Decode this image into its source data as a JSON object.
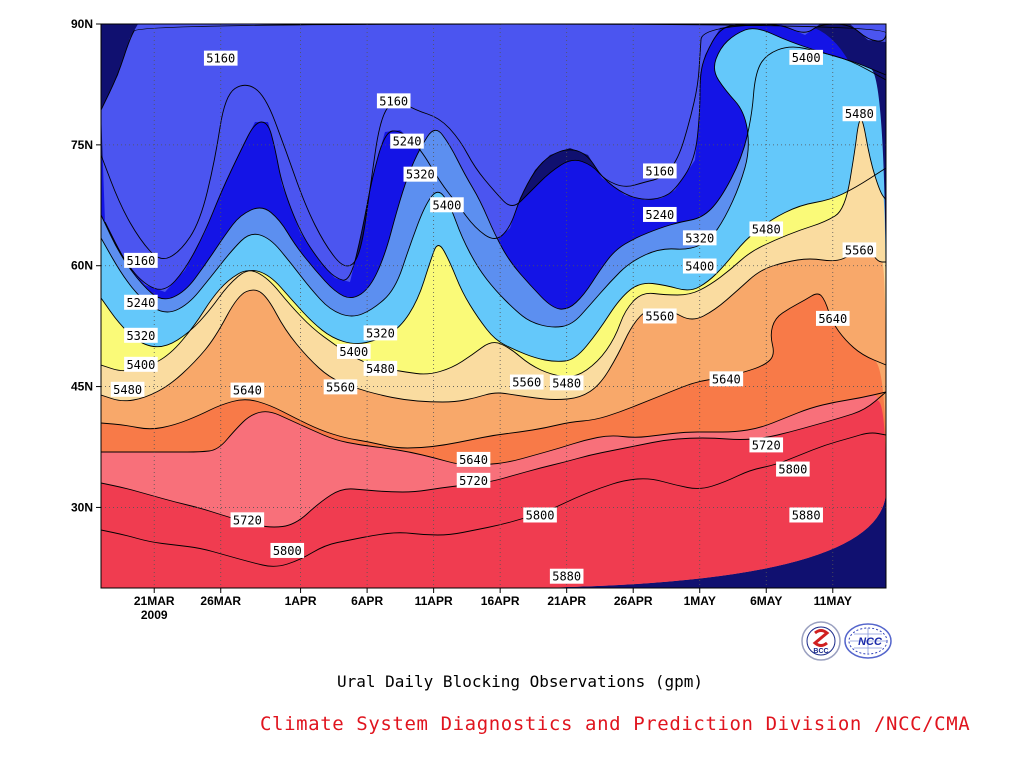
{
  "title": "Ural Daily Blocking Observations (gpm)",
  "credit": "Climate System Diagnostics and Prediction Division /NCC/CMA",
  "logos": [
    {
      "name": "bcc-logo",
      "text": "BCC"
    },
    {
      "name": "ncc-logo",
      "text": "NCC"
    }
  ],
  "chart_data": {
    "type": "contour",
    "variable": "500 hPa geopotential height (gpm)",
    "x_axis": {
      "type": "date",
      "range": [
        "2009-03-17",
        "2009-05-15"
      ],
      "ticks": [
        {
          "date": "2009-03-21",
          "label": "21MAR",
          "sublabel": "2009"
        },
        {
          "date": "2009-03-26",
          "label": "26MAR"
        },
        {
          "date": "2009-04-01",
          "label": "1APR"
        },
        {
          "date": "2009-04-06",
          "label": "6APR"
        },
        {
          "date": "2009-04-11",
          "label": "11APR"
        },
        {
          "date": "2009-04-16",
          "label": "16APR"
        },
        {
          "date": "2009-04-21",
          "label": "21APR"
        },
        {
          "date": "2009-04-26",
          "label": "26APR"
        },
        {
          "date": "2009-05-01",
          "label": "1MAY"
        },
        {
          "date": "2009-05-06",
          "label": "6MAY"
        },
        {
          "date": "2009-05-11",
          "label": "11MAY"
        }
      ]
    },
    "y_axis": {
      "type": "latitude",
      "range": [
        20,
        90
      ],
      "ticks": [
        {
          "value": 30,
          "label": "30N"
        },
        {
          "value": 45,
          "label": "45N"
        },
        {
          "value": 60,
          "label": "60N"
        },
        {
          "value": 75,
          "label": "75N"
        },
        {
          "value": 90,
          "label": "90N"
        }
      ]
    },
    "contour_levels": [
      5160,
      5240,
      5320,
      5400,
      5480,
      5560,
      5640,
      5720,
      5800,
      5880
    ],
    "fill_colors": [
      "#101070",
      "#1414e6",
      "#4b55f0",
      "#5c8ff0",
      "#64c8fa",
      "#fafa78",
      "#fadca0",
      "#f8a86a",
      "#f87a48",
      "#f8707a",
      "#f03c50"
    ],
    "contour_labels": [
      {
        "value": "5160",
        "date": "2009-03-20",
        "lat": 60.6
      },
      {
        "value": "5160",
        "date": "2009-03-26",
        "lat": 85.7
      },
      {
        "value": "5160",
        "date": "2009-04-08",
        "lat": 80.4
      },
      {
        "value": "5160",
        "date": "2009-04-28",
        "lat": 71.7
      },
      {
        "value": "5240",
        "date": "2009-03-20",
        "lat": 55.4
      },
      {
        "value": "5240",
        "date": "2009-04-09",
        "lat": 75.4
      },
      {
        "value": "5240",
        "date": "2009-04-28",
        "lat": 66.3
      },
      {
        "value": "5320",
        "date": "2009-03-20",
        "lat": 51.3
      },
      {
        "value": "5320",
        "date": "2009-04-10",
        "lat": 71.3
      },
      {
        "value": "5320",
        "date": "2009-04-07",
        "lat": 51.6
      },
      {
        "value": "5320",
        "date": "2009-05-01",
        "lat": 63.4
      },
      {
        "value": "5400",
        "date": "2009-03-20",
        "lat": 47.7
      },
      {
        "value": "5400",
        "date": "2009-04-05",
        "lat": 49.3
      },
      {
        "value": "5400",
        "date": "2009-04-12",
        "lat": 67.5
      },
      {
        "value": "5400",
        "date": "2009-05-01",
        "lat": 59.9
      },
      {
        "value": "5400",
        "date": "2009-05-09",
        "lat": 85.8
      },
      {
        "value": "5480",
        "date": "2009-03-19",
        "lat": 44.6
      },
      {
        "value": "5480",
        "date": "2009-04-07",
        "lat": 47.2
      },
      {
        "value": "5480",
        "date": "2009-04-21",
        "lat": 45.4
      },
      {
        "value": "5480",
        "date": "2009-05-06",
        "lat": 64.5
      },
      {
        "value": "5480",
        "date": "2009-05-13",
        "lat": 78.8
      },
      {
        "value": "5560",
        "date": "2009-04-04",
        "lat": 44.9
      },
      {
        "value": "5560",
        "date": "2009-04-18",
        "lat": 45.5
      },
      {
        "value": "5560",
        "date": "2009-04-28",
        "lat": 53.7
      },
      {
        "value": "5560",
        "date": "2009-05-13",
        "lat": 61.9
      },
      {
        "value": "5640",
        "date": "2009-03-28",
        "lat": 44.5
      },
      {
        "value": "5640",
        "date": "2009-04-14",
        "lat": 35.9
      },
      {
        "value": "5640",
        "date": "2009-05-03",
        "lat": 45.9
      },
      {
        "value": "5640",
        "date": "2009-05-11",
        "lat": 53.4
      },
      {
        "value": "5720",
        "date": "2009-03-28",
        "lat": 28.4
      },
      {
        "value": "5720",
        "date": "2009-04-14",
        "lat": 33.3
      },
      {
        "value": "5720",
        "date": "2009-05-06",
        "lat": 37.7
      },
      {
        "value": "5800",
        "date": "2009-03-31",
        "lat": 24.6
      },
      {
        "value": "5800",
        "date": "2009-04-19",
        "lat": 29.0
      },
      {
        "value": "5800",
        "date": "2009-05-08",
        "lat": 34.7
      },
      {
        "value": "5880",
        "date": "2009-04-21",
        "lat": 21.4
      },
      {
        "value": "5880",
        "date": "2009-05-09",
        "lat": 29.0
      }
    ]
  }
}
